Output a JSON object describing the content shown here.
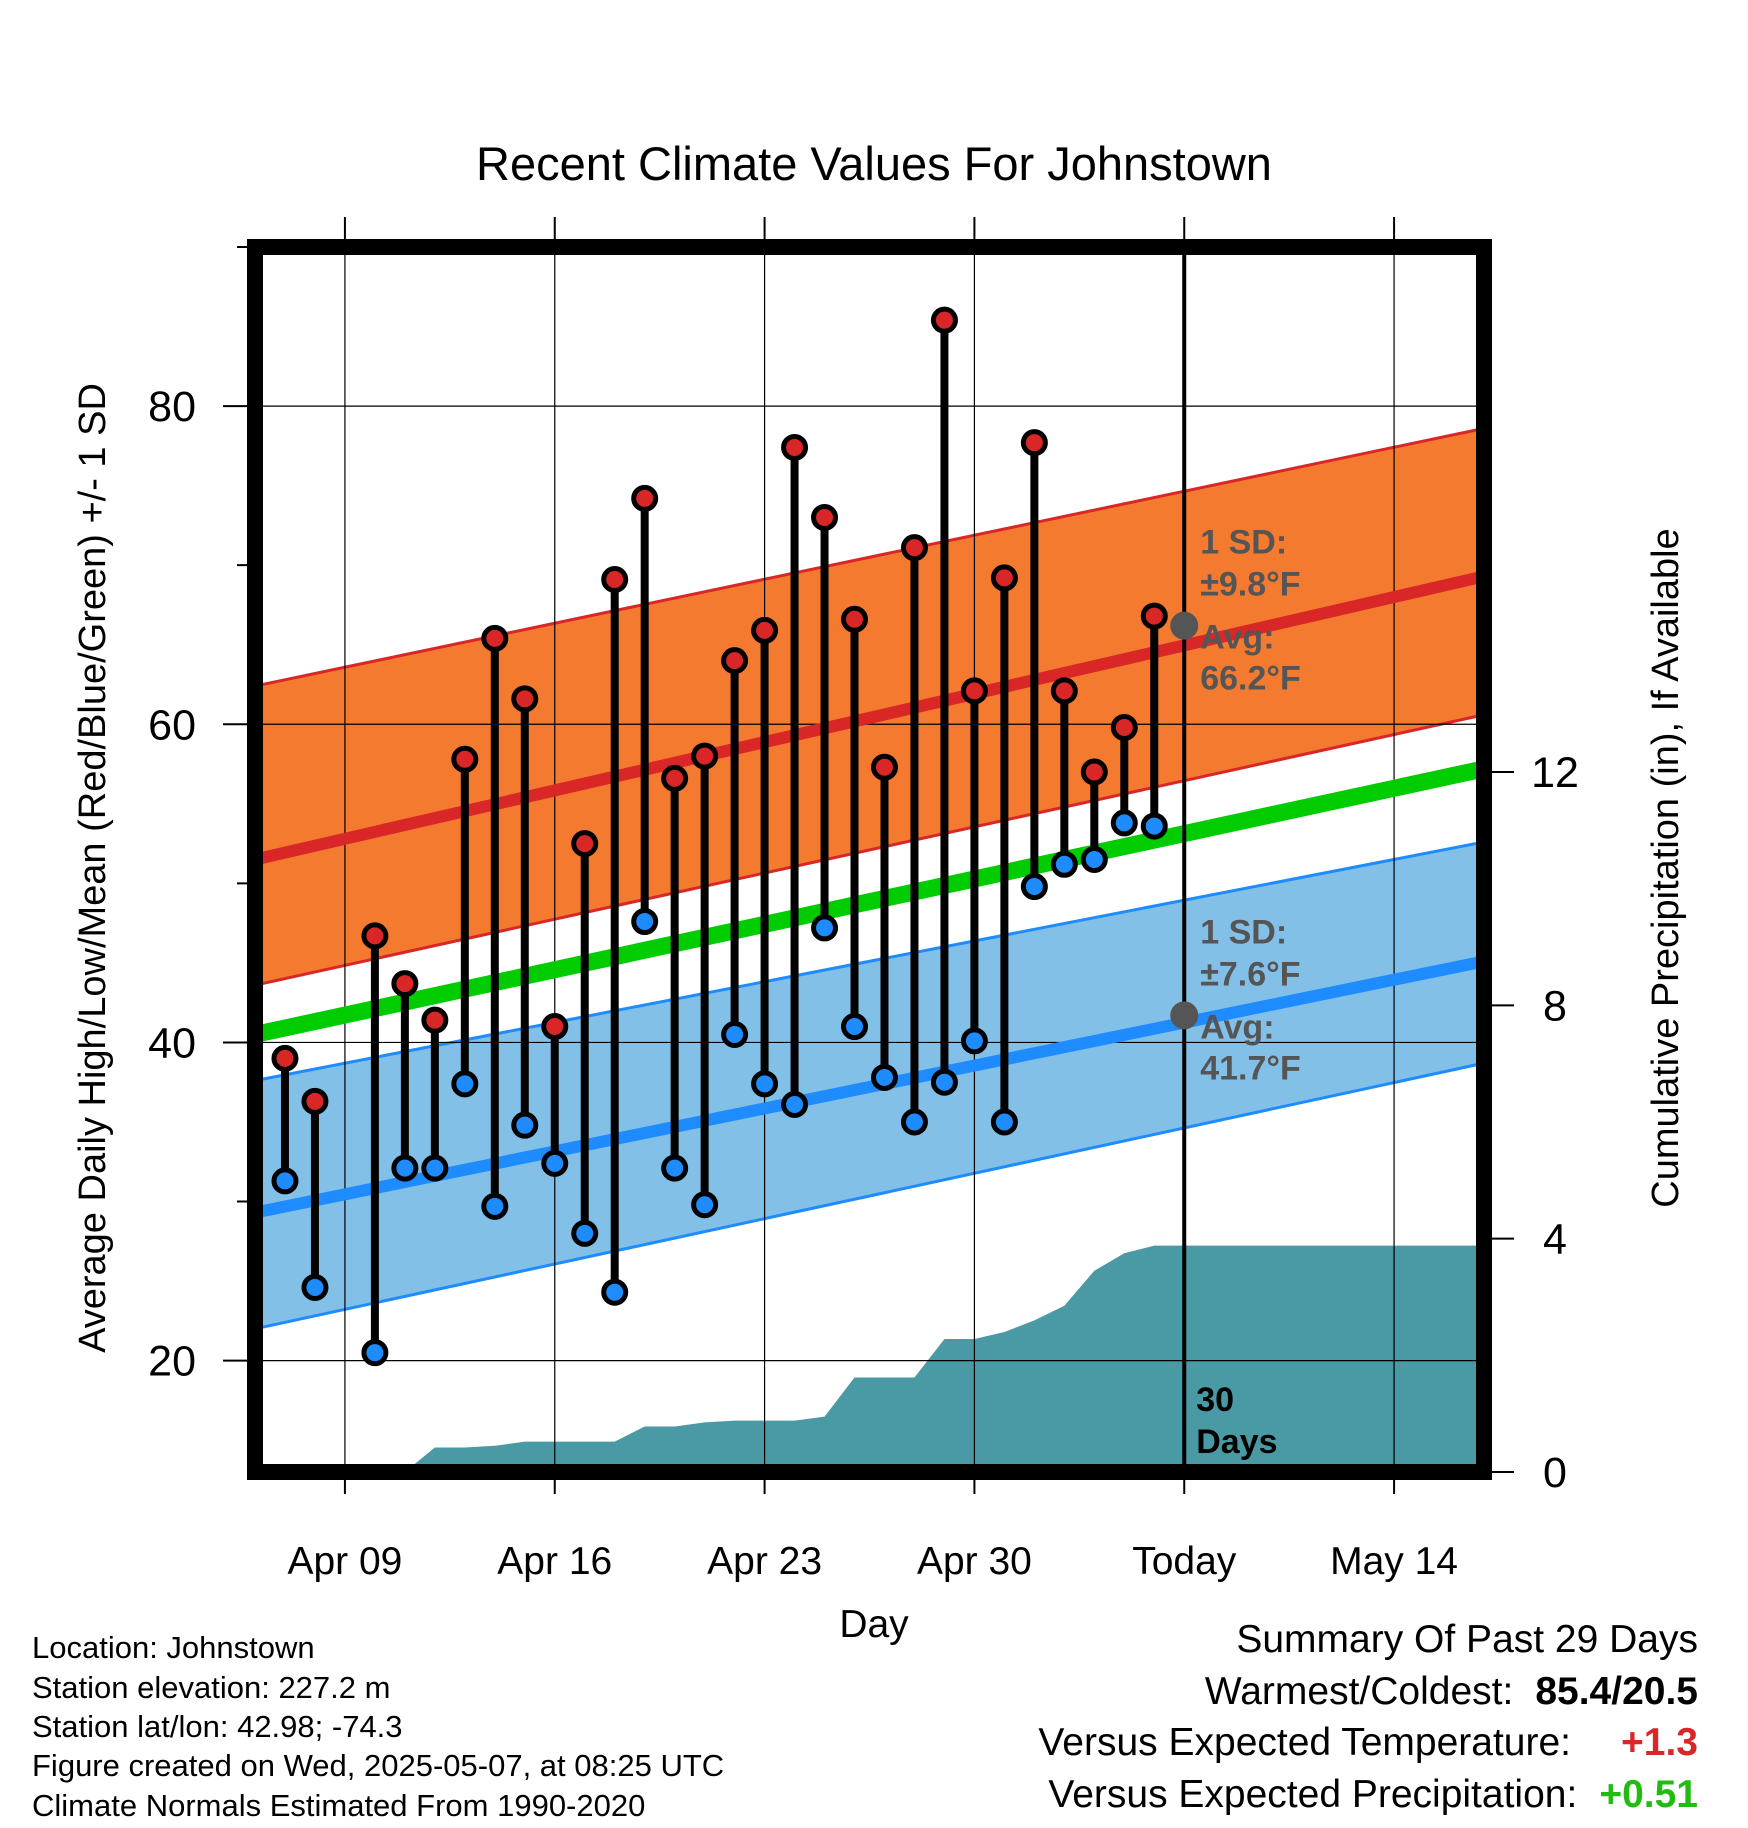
{
  "chart_data": {
    "type": "line",
    "title": "Recent Climate Values For Johnstown",
    "xlabel": "Day",
    "ylabel": "Average Daily High/Low/Mean (Red/Blue/Green) +/- 1 SD",
    "y2label": "Cumulative Precipitation (in), If Available",
    "x_range": [
      "2025-04-06",
      "2025-05-17"
    ],
    "ylim": [
      13,
      90
    ],
    "y2lim": [
      0,
      21
    ],
    "grid": true,
    "x_ticks": [
      {
        "date": "2025-04-09",
        "label": "Apr 09"
      },
      {
        "date": "2025-04-16",
        "label": "Apr 16"
      },
      {
        "date": "2025-04-23",
        "label": "Apr 23"
      },
      {
        "date": "2025-04-30",
        "label": "Apr 30"
      },
      {
        "date": "2025-05-07",
        "label": "Today"
      },
      {
        "date": "2025-05-14",
        "label": "May 14"
      }
    ],
    "y_ticks": [
      20,
      40,
      60,
      80
    ],
    "y2_ticks": [
      0,
      4,
      8,
      12
    ],
    "today": "2025-05-07",
    "colors": {
      "high": "#d92626",
      "low": "#1e8cff",
      "mean": "#00cc00",
      "high_band": "#f47a30",
      "low_band": "#82c0e8",
      "precip": "#4a9aa5"
    },
    "normals": {
      "dates": [
        "2025-04-06",
        "2025-05-17"
      ],
      "high_mean": [
        51.5,
        69.3
      ],
      "high_upper": [
        62.4,
        78.6
      ],
      "high_lower": [
        43.6,
        60.6
      ],
      "low_mean": [
        29.3,
        45.1
      ],
      "low_upper": [
        37.6,
        52.6
      ],
      "low_lower": [
        22.0,
        38.7
      ],
      "mean": [
        40.5,
        57.2
      ]
    },
    "observations": [
      {
        "date": "2025-04-07",
        "high": 39.0,
        "low": 31.3
      },
      {
        "date": "2025-04-08",
        "high": 36.3,
        "low": 24.6
      },
      {
        "date": "2025-04-10",
        "high": 46.7,
        "low": 20.5
      },
      {
        "date": "2025-04-11",
        "high": 43.7,
        "low": 32.1
      },
      {
        "date": "2025-04-12",
        "high": 41.4,
        "low": 32.1
      },
      {
        "date": "2025-04-13",
        "high": 57.8,
        "low": 37.4
      },
      {
        "date": "2025-04-14",
        "high": 65.4,
        "low": 29.7
      },
      {
        "date": "2025-04-15",
        "high": 61.6,
        "low": 34.8
      },
      {
        "date": "2025-04-16",
        "high": 41.0,
        "low": 32.4
      },
      {
        "date": "2025-04-17",
        "high": 52.5,
        "low": 28.0
      },
      {
        "date": "2025-04-18",
        "high": 69.1,
        "low": 24.3
      },
      {
        "date": "2025-04-19",
        "high": 74.2,
        "low": 47.6
      },
      {
        "date": "2025-04-20",
        "high": 56.6,
        "low": 32.1
      },
      {
        "date": "2025-04-21",
        "high": 58.0,
        "low": 29.8
      },
      {
        "date": "2025-04-22",
        "high": 64.0,
        "low": 40.5
      },
      {
        "date": "2025-04-23",
        "high": 65.9,
        "low": 37.4
      },
      {
        "date": "2025-04-24",
        "high": 77.4,
        "low": 36.1
      },
      {
        "date": "2025-04-25",
        "high": 73.0,
        "low": 47.2
      },
      {
        "date": "2025-04-26",
        "high": 66.6,
        "low": 41.0
      },
      {
        "date": "2025-04-27",
        "high": 57.3,
        "low": 37.8
      },
      {
        "date": "2025-04-28",
        "high": 71.1,
        "low": 35.0
      },
      {
        "date": "2025-04-29",
        "high": 85.4,
        "low": 37.5
      },
      {
        "date": "2025-04-30",
        "high": 62.1,
        "low": 40.1
      },
      {
        "date": "2025-05-01",
        "high": 69.2,
        "low": 35.0
      },
      {
        "date": "2025-05-02",
        "high": 77.7,
        "low": 49.8
      },
      {
        "date": "2025-05-03",
        "high": 62.1,
        "low": 51.2
      },
      {
        "date": "2025-05-04",
        "high": 57.0,
        "low": 51.5
      },
      {
        "date": "2025-05-05",
        "high": 59.8,
        "low": 53.8
      },
      {
        "date": "2025-05-06",
        "high": 66.8,
        "low": 53.6
      }
    ],
    "precipitation": {
      "dates": [
        "2025-04-06",
        "2025-04-09",
        "2025-04-10",
        "2025-04-11",
        "2025-04-12",
        "2025-04-13",
        "2025-04-14",
        "2025-04-15",
        "2025-04-16",
        "2025-04-17",
        "2025-04-18",
        "2025-04-19",
        "2025-04-20",
        "2025-04-21",
        "2025-04-22",
        "2025-04-23",
        "2025-04-24",
        "2025-04-25",
        "2025-04-26",
        "2025-04-27",
        "2025-04-28",
        "2025-04-29",
        "2025-04-30",
        "2025-05-01",
        "2025-05-02",
        "2025-05-03",
        "2025-05-04",
        "2025-05-05",
        "2025-05-06",
        "2025-05-07",
        "2025-05-17"
      ],
      "values": [
        0,
        0,
        0,
        0,
        0.42,
        0.42,
        0.45,
        0.52,
        0.52,
        0.52,
        0.52,
        0.78,
        0.78,
        0.85,
        0.88,
        0.88,
        0.88,
        0.95,
        1.62,
        1.62,
        1.62,
        2.28,
        2.28,
        2.4,
        2.6,
        2.85,
        3.45,
        3.75,
        3.88,
        3.88,
        3.88
      ]
    },
    "annotations": {
      "high_sd_label": "1 SD:",
      "high_sd_value": "±9.8°F",
      "high_avg_label": "Avg:",
      "high_avg_value": "66.2°F",
      "high_avg": 66.2,
      "low_sd_label": "1 SD:",
      "low_sd_value": "±7.6°F",
      "low_avg_label": "Avg:",
      "low_avg_value": "41.7°F",
      "low_avg": 41.7,
      "days_line1": "30",
      "days_line2": "Days"
    }
  },
  "footer": {
    "location": "Location: Johnstown",
    "elevation": "Station elevation: 227.2 m",
    "latlon": "Station lat/lon: 42.98; -74.3",
    "created": "Figure created on Wed, 2025-05-07, at 08:25 UTC",
    "normals": "Climate Normals Estimated From 1990-2020"
  },
  "summary": {
    "heading": "Summary Of Past 29 Days",
    "warmest_coldest_label": "Warmest/Coldest:",
    "warmest_coldest_value": "85.4/20.5",
    "temp_label": "Versus Expected Temperature:",
    "temp_value": "+1.3",
    "precip_label": "Versus Expected Precipitation:",
    "precip_value": "+0.51"
  }
}
